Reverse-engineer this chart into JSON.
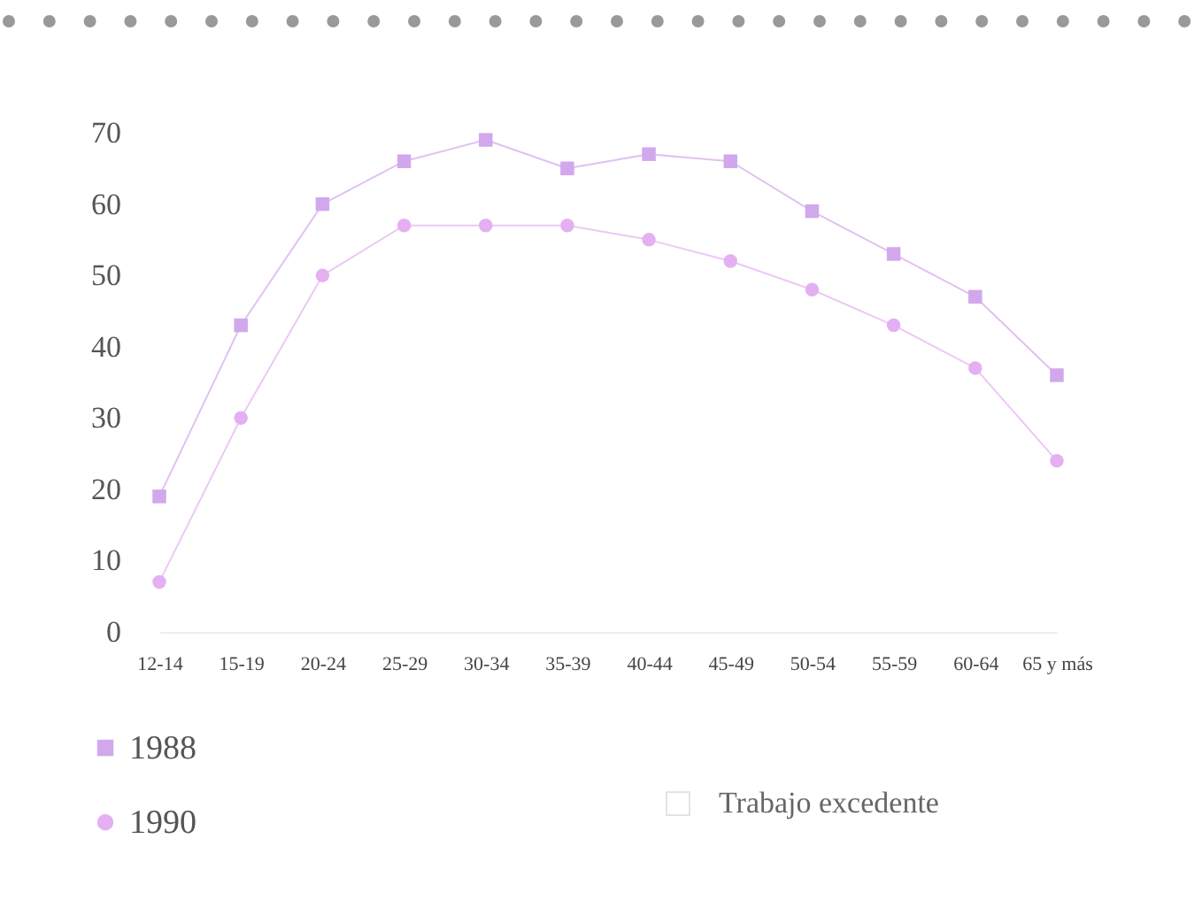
{
  "chart_data": {
    "type": "line",
    "categories": [
      "12-14",
      "15-19",
      "20-24",
      "25-29",
      "30-34",
      "35-39",
      "40-44",
      "45-49",
      "50-54",
      "55-59",
      "60-64",
      "65 y más"
    ],
    "series": [
      {
        "name": "1988",
        "color": "#d2a8ec",
        "marker": "square",
        "values": [
          19,
          43,
          60,
          66,
          69,
          65,
          67,
          66,
          59,
          53,
          47,
          36
        ]
      },
      {
        "name": "1990",
        "color": "#e4b0f2",
        "marker": "circle",
        "values": [
          7,
          30,
          50,
          57,
          57,
          57,
          55,
          52,
          48,
          43,
          37,
          24
        ]
      }
    ],
    "ylim": [
      0,
      70
    ],
    "yticks": [
      0,
      10,
      20,
      30,
      40,
      50,
      60,
      70
    ],
    "grid": false,
    "legend": "bottom left",
    "annotations": [
      "Trabajo excedente"
    ]
  }
}
